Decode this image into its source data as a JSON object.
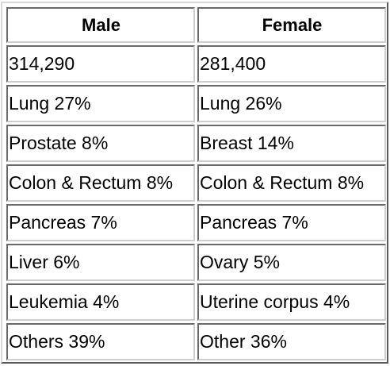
{
  "table": {
    "headers": [
      "Male",
      "Female"
    ],
    "rows": [
      [
        "314,290",
        "281,400"
      ],
      [
        "Lung 27%",
        "Lung 26%"
      ],
      [
        "Prostate 8%",
        "Breast 14%"
      ],
      [
        "Colon & Rectum 8%",
        "Colon & Rectum 8%"
      ],
      [
        "Pancreas 7%",
        "Pancreas 7%"
      ],
      [
        "Liver 6%",
        "Ovary 5%"
      ],
      [
        "Leukemia 4%",
        "Uterine corpus 4%"
      ],
      [
        "Others 39%",
        "Other 36%"
      ]
    ]
  }
}
